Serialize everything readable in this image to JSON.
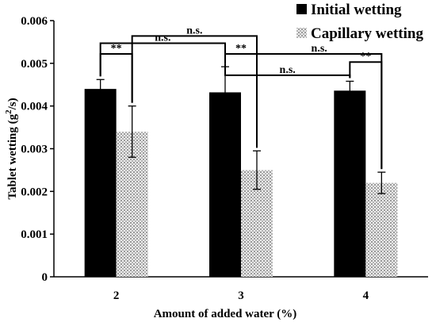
{
  "chart_data": {
    "type": "bar",
    "categories": [
      "2",
      "3",
      "4"
    ],
    "series": [
      {
        "name": "Initial wetting",
        "values": [
          0.0044,
          0.00432,
          0.00436
        ],
        "errors": [
          0.00022,
          0.0006,
          0.00022
        ],
        "color": "#000000",
        "pattern": "solid"
      },
      {
        "name": "Capillary wetting",
        "values": [
          0.0034,
          0.0025,
          0.0022
        ],
        "errors": [
          0.0006,
          0.00045,
          0.00025
        ],
        "color": "#c8c8c8",
        "pattern": "dotted"
      }
    ],
    "xlabel": "Amount of added water (%)",
    "ylabel_main": "Tablet wetting (g",
    "ylabel_sup": "2",
    "ylabel_tail": "/s)",
    "ylim": [
      0,
      0.006
    ],
    "yticks": [
      0,
      0.001,
      0.002,
      0.003,
      0.004,
      0.005,
      0.006
    ],
    "ytick_labels": [
      "0",
      "0.001",
      "0.002",
      "0.003",
      "0.004",
      "0.005",
      "0.006"
    ],
    "legend_position": "top-right",
    "grid": false,
    "significance": [
      {
        "label": "**",
        "from": [
          0,
          0
        ],
        "to": [
          0,
          1
        ],
        "level": 0.00522
      },
      {
        "label": "n.s.",
        "from": [
          0,
          0
        ],
        "to": [
          1,
          0
        ],
        "level": 0.00547
      },
      {
        "label": "n.s.",
        "from": [
          0,
          1
        ],
        "to": [
          1,
          1
        ],
        "level": 0.00564
      },
      {
        "label": "**",
        "from": [
          1,
          0
        ],
        "to": [
          1,
          1
        ],
        "level": 0.00522
      },
      {
        "label": "n.s.",
        "from": [
          1,
          0
        ],
        "to": [
          2,
          0
        ],
        "level": 0.00472
      },
      {
        "label": "n.s.",
        "from": [
          1,
          1
        ],
        "to": [
          2,
          1
        ],
        "level": 0.00522
      },
      {
        "label": "**",
        "from": [
          2,
          0
        ],
        "to": [
          2,
          1
        ],
        "level": 0.00503
      }
    ]
  }
}
